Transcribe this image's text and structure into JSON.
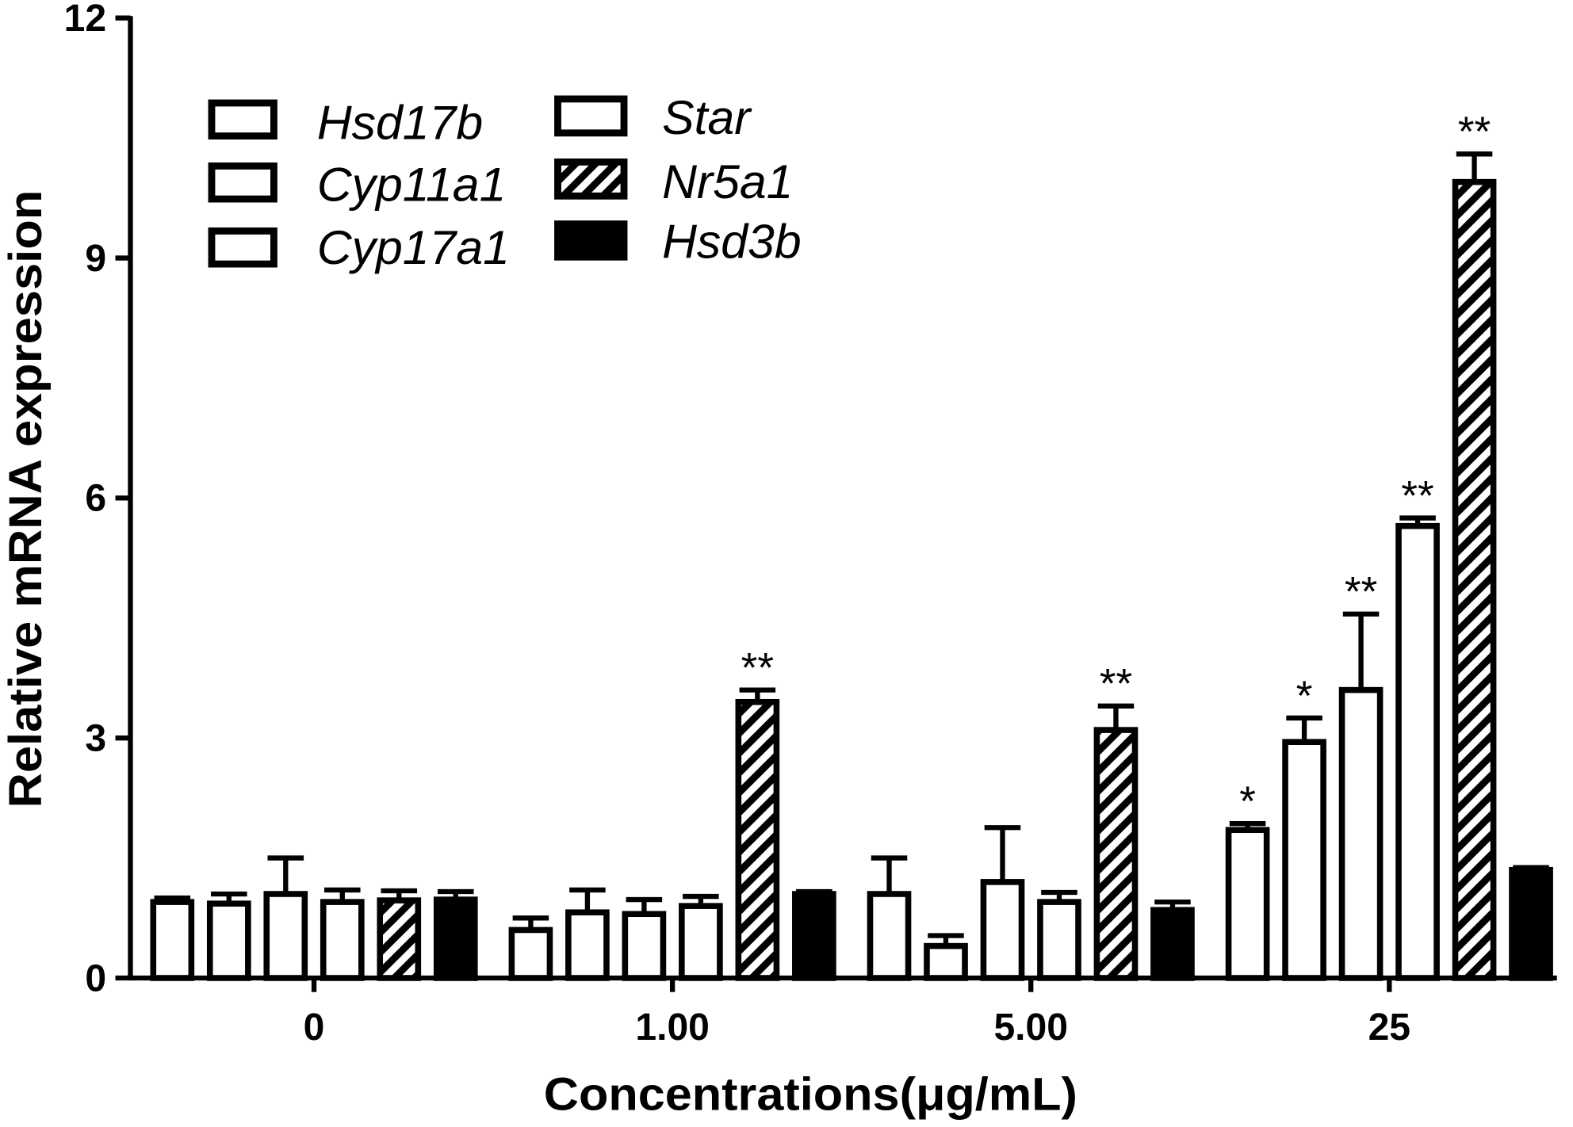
{
  "chart_data": {
    "type": "bar",
    "categories": [
      "0",
      "1.00",
      "5.00",
      "25"
    ],
    "xlabel": "Concentrations(μg/mL)",
    "ylabel": "Relative mRNA expression",
    "ylim": [
      0,
      12
    ],
    "yticks": [
      0,
      3,
      6,
      9,
      12
    ],
    "grid": false,
    "legend_position": "top-left",
    "error_bars": "upper",
    "colors": {
      "border": "#000000",
      "background": "#ffffff",
      "hatch": "#000000"
    },
    "series": [
      {
        "name": "Hsd17b",
        "fill": "#ffffff",
        "pattern": "none",
        "values": [
          0.95,
          0.6,
          1.05,
          1.85
        ],
        "errors": [
          0.05,
          0.15,
          0.45,
          0.08
        ],
        "significance": [
          null,
          null,
          null,
          "*"
        ]
      },
      {
        "name": "Cyp11a1",
        "fill": "#ffffff",
        "pattern": "none",
        "values": [
          0.93,
          0.82,
          0.4,
          2.95
        ],
        "errors": [
          0.12,
          0.28,
          0.13,
          0.3
        ],
        "significance": [
          null,
          null,
          null,
          "*"
        ]
      },
      {
        "name": "Cyp17a1",
        "fill": "#ffffff",
        "pattern": "none",
        "values": [
          1.05,
          0.8,
          1.2,
          3.6
        ],
        "errors": [
          0.45,
          0.18,
          0.68,
          0.95
        ],
        "significance": [
          null,
          null,
          null,
          "**"
        ]
      },
      {
        "name": "Star",
        "fill": "#ffffff",
        "pattern": "none",
        "values": [
          0.95,
          0.9,
          0.95,
          5.65
        ],
        "errors": [
          0.15,
          0.12,
          0.12,
          0.1
        ],
        "significance": [
          null,
          null,
          null,
          "**"
        ]
      },
      {
        "name": "Nr5a1",
        "fill": "#ffffff",
        "pattern": "diagonal-hatch",
        "values": [
          0.97,
          3.45,
          3.1,
          9.95
        ],
        "errors": [
          0.12,
          0.15,
          0.3,
          0.35
        ],
        "significance": [
          null,
          "**",
          "**",
          "**"
        ]
      },
      {
        "name": "Hsd3b",
        "fill": "#000000",
        "pattern": "none",
        "values": [
          0.98,
          1.05,
          0.85,
          1.35
        ],
        "errors": [
          0.1,
          0.03,
          0.1,
          0.03
        ],
        "significance": [
          null,
          null,
          null,
          null
        ]
      }
    ]
  }
}
